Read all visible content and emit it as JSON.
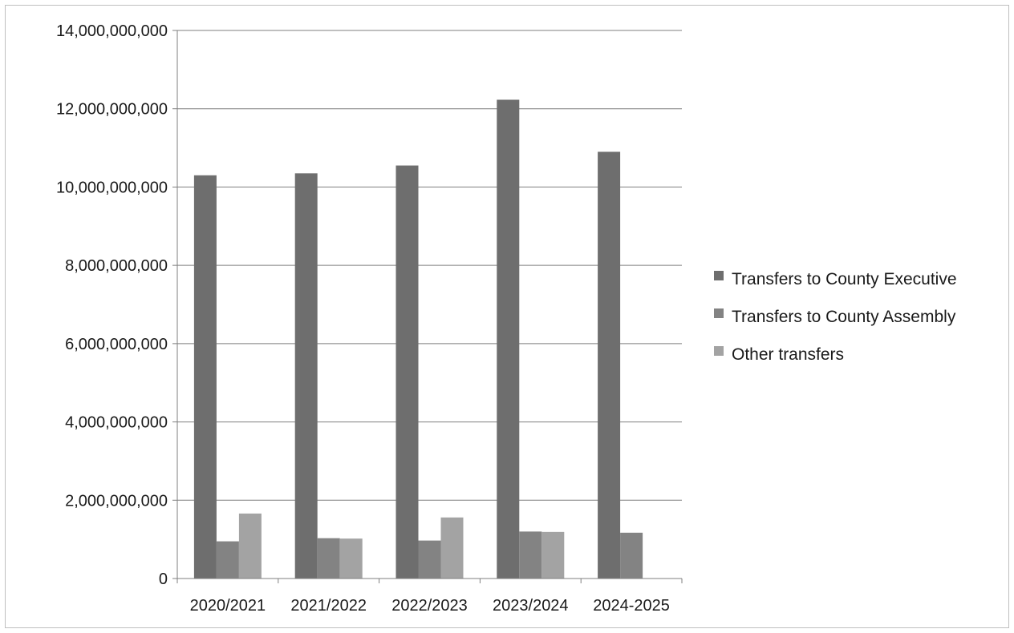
{
  "chart_data": {
    "type": "bar",
    "title": "",
    "xlabel": "",
    "ylabel": "",
    "categories": [
      "2020/2021",
      "2021/2022",
      "2022/2023",
      "2023/2024",
      "2024-2025"
    ],
    "series": [
      {
        "name": "Transfers to County Executive",
        "color": "#6e6e6e",
        "values": [
          10300000000,
          10350000000,
          10550000000,
          12230000000,
          10900000000
        ]
      },
      {
        "name": "Transfers to County Assembly",
        "color": "#838383",
        "values": [
          950000000,
          1030000000,
          970000000,
          1200000000,
          1170000000
        ]
      },
      {
        "name": "Other transfers",
        "color": "#a3a3a3",
        "values": [
          1660000000,
          1020000000,
          1560000000,
          1190000000,
          null
        ]
      }
    ],
    "ylim": [
      0,
      14000000000
    ],
    "yticks": [
      {
        "value": 0,
        "label": "0"
      },
      {
        "value": 2000000000,
        "label": "2,000,000,000"
      },
      {
        "value": 4000000000,
        "label": "4,000,000,000"
      },
      {
        "value": 6000000000,
        "label": "6,000,000,000"
      },
      {
        "value": 8000000000,
        "label": "8,000,000,000"
      },
      {
        "value": 10000000000,
        "label": "10,000,000,000"
      },
      {
        "value": 12000000000,
        "label": "12,000,000,000"
      },
      {
        "value": 14000000000,
        "label": "14,000,000,000"
      }
    ],
    "grid": true,
    "legend_position": "right"
  }
}
